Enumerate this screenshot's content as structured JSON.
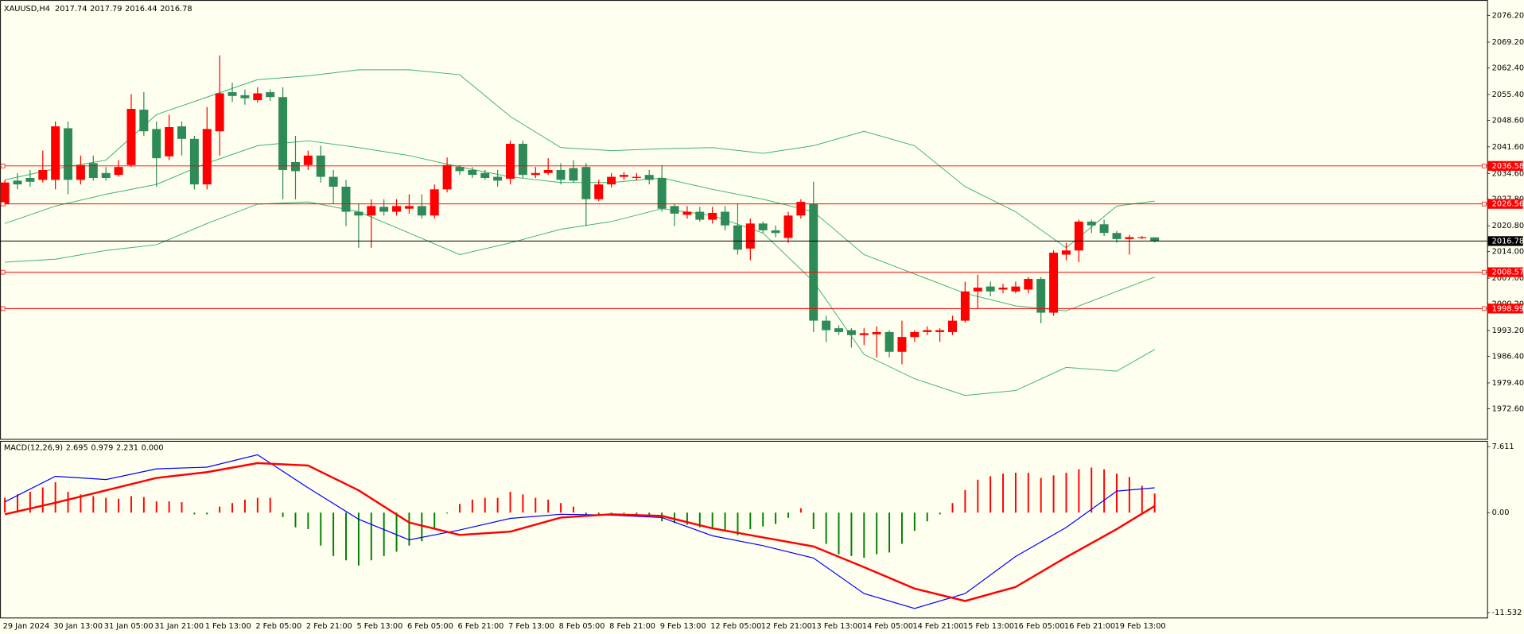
{
  "chart_data": [
    {
      "type": "candlestick",
      "title": "XAUUSD,H4",
      "categories": [
        "29 Jan 2024",
        null,
        null,
        null,
        "30 Jan 13:00",
        null,
        null,
        null,
        "31 Jan 05:00",
        null,
        null,
        null,
        "31 Jan 21:00",
        null,
        null,
        null,
        "1 Feb 13:00",
        null,
        null,
        null,
        "2 Feb 05:00",
        null,
        null,
        null,
        "2 Feb 21:00",
        null,
        null,
        null,
        "5 Feb 13:00",
        null,
        null,
        null,
        "6 Feb 05:00",
        null,
        null,
        null,
        "6 Feb 21:00",
        null,
        null,
        null,
        "7 Feb 13:00",
        null,
        null,
        null,
        "8 Feb 05:00",
        null,
        null,
        null,
        "8 Feb 21:00",
        null,
        null,
        null,
        "9 Feb 13:00",
        null,
        null,
        null,
        "12 Feb 05:00",
        null,
        null,
        null,
        "12 Feb 21:00",
        null,
        null,
        null,
        "13 Feb 13:00",
        null,
        null,
        null,
        "14 Feb 05:00",
        null,
        null,
        null,
        "14 Feb 21:00",
        null,
        null,
        null,
        "15 Feb 13:00",
        null,
        null,
        null,
        "16 Feb 05:00",
        null,
        null,
        null,
        "16 Feb 21:00",
        null,
        null,
        null,
        "19 Feb 13:00",
        null,
        null,
        null
      ],
      "candles": [
        [
          2026.5,
          2032.9,
          2026.0,
          2032.2
        ],
        [
          2032.7,
          2034.7,
          2030.4,
          2031.7
        ],
        [
          2033.4,
          2035.5,
          2031.1,
          2032.4
        ],
        [
          2032.9,
          2040.6,
          2032.2,
          2035.5
        ],
        [
          2032.9,
          2048.3,
          2030.4,
          2047.0
        ],
        [
          2046.5,
          2048.3,
          2029.1,
          2032.9
        ],
        [
          2032.9,
          2039.3,
          2031.7,
          2036.8
        ],
        [
          2037.3,
          2039.3,
          2032.7,
          2033.4
        ],
        [
          2034.7,
          2036.3,
          2032.7,
          2033.4
        ],
        [
          2034.2,
          2038.1,
          2033.7,
          2036.3
        ],
        [
          2036.8,
          2055.5,
          2036.3,
          2051.6
        ],
        [
          2051.4,
          2056.0,
          2044.5,
          2045.7
        ],
        [
          2046.3,
          2048.3,
          2031.1,
          2038.6
        ],
        [
          2039.1,
          2050.1,
          2038.1,
          2046.8
        ],
        [
          2047.0,
          2048.3,
          2039.3,
          2043.7
        ],
        [
          2043.7,
          2044.5,
          2030.4,
          2031.7
        ],
        [
          2031.7,
          2052.1,
          2030.4,
          2046.3
        ],
        [
          2045.7,
          2065.7,
          2039.3,
          2055.7
        ],
        [
          2056.0,
          2058.5,
          2053.4,
          2055.0
        ],
        [
          2055.2,
          2056.7,
          2052.7,
          2054.4
        ],
        [
          2053.9,
          2057.3,
          2053.2,
          2055.7
        ],
        [
          2056.0,
          2056.7,
          2053.7,
          2054.7
        ],
        [
          2054.7,
          2057.3,
          2027.8,
          2035.5
        ],
        [
          2037.6,
          2044.5,
          2027.8,
          2035.2
        ],
        [
          2036.8,
          2040.6,
          2035.5,
          2039.3
        ],
        [
          2039.3,
          2041.9,
          2032.2,
          2033.7
        ],
        [
          2033.7,
          2035.5,
          2026.5,
          2031.1
        ],
        [
          2031.1,
          2032.9,
          2020.7,
          2024.5
        ],
        [
          2024.5,
          2026.5,
          2015.0,
          2023.5
        ],
        [
          2023.5,
          2027.8,
          2015.0,
          2026.0
        ],
        [
          2025.8,
          2027.8,
          2023.5,
          2024.5
        ],
        [
          2024.5,
          2027.8,
          2023.5,
          2026.0
        ],
        [
          2025.3,
          2029.1,
          2024.0,
          2026.0
        ],
        [
          2026.0,
          2029.1,
          2022.7,
          2023.5
        ],
        [
          2023.5,
          2031.7,
          2022.7,
          2030.4
        ],
        [
          2030.4,
          2038.8,
          2029.6,
          2036.8
        ],
        [
          2036.3,
          2036.8,
          2034.2,
          2035.2
        ],
        [
          2035.5,
          2036.3,
          2033.4,
          2034.2
        ],
        [
          2034.7,
          2035.5,
          2032.9,
          2033.4
        ],
        [
          2033.7,
          2035.5,
          2031.1,
          2032.7
        ],
        [
          2033.2,
          2043.2,
          2031.7,
          2042.4
        ],
        [
          2042.4,
          2043.2,
          2033.4,
          2034.2
        ],
        [
          2034.2,
          2036.3,
          2033.4,
          2034.7
        ],
        [
          2034.7,
          2038.6,
          2034.2,
          2035.5
        ],
        [
          2035.5,
          2037.3,
          2031.7,
          2032.9
        ],
        [
          2036.0,
          2038.1,
          2032.2,
          2032.7
        ],
        [
          2036.3,
          2037.3,
          2020.7,
          2027.8
        ],
        [
          2027.8,
          2032.9,
          2027.3,
          2031.7
        ],
        [
          2031.7,
          2034.7,
          2030.9,
          2033.7
        ],
        [
          2033.7,
          2035.0,
          2032.9,
          2034.2
        ],
        [
          2033.4,
          2034.7,
          2032.7,
          2033.7
        ],
        [
          2034.2,
          2035.5,
          2031.7,
          2032.9
        ],
        [
          2033.4,
          2036.8,
          2024.5,
          2025.3
        ],
        [
          2026.0,
          2026.5,
          2020.7,
          2024.0
        ],
        [
          2023.7,
          2026.0,
          2022.7,
          2024.5
        ],
        [
          2024.5,
          2025.8,
          2021.9,
          2022.4
        ],
        [
          2022.4,
          2025.8,
          2021.4,
          2024.2
        ],
        [
          2024.5,
          2026.0,
          2019.6,
          2020.9
        ],
        [
          2020.9,
          2026.5,
          2013.2,
          2014.5
        ],
        [
          2014.8,
          2022.7,
          2011.7,
          2021.4
        ],
        [
          2021.4,
          2021.9,
          2018.9,
          2019.6
        ],
        [
          2019.6,
          2020.9,
          2017.8,
          2018.9
        ],
        [
          2017.6,
          2024.5,
          2016.3,
          2023.5
        ],
        [
          2023.5,
          2027.8,
          2022.7,
          2027.1
        ],
        [
          2026.5,
          2032.4,
          1992.8,
          1995.8
        ],
        [
          1995.8,
          1997.1,
          1990.2,
          1993.3
        ],
        [
          1993.8,
          1994.6,
          1992.0,
          1992.8
        ],
        [
          1993.3,
          1993.8,
          1988.7,
          1992.0
        ],
        [
          1992.0,
          1993.8,
          1989.4,
          1992.5
        ],
        [
          1992.2,
          1994.3,
          1986.1,
          1992.8
        ],
        [
          1992.8,
          1993.3,
          1986.1,
          1987.6
        ],
        [
          1987.6,
          1995.8,
          1984.3,
          1991.5
        ],
        [
          1991.5,
          1993.3,
          1990.2,
          1992.8
        ],
        [
          1992.8,
          1994.3,
          1992.0,
          1993.3
        ],
        [
          1992.8,
          1993.8,
          1990.2,
          1993.3
        ],
        [
          1992.8,
          1997.1,
          1992.0,
          1995.8
        ],
        [
          1995.8,
          2006.1,
          1995.3,
          2003.5
        ],
        [
          2003.5,
          2007.9,
          1998.9,
          2004.5
        ],
        [
          2004.8,
          2006.1,
          2002.2,
          2003.5
        ],
        [
          2004.0,
          2005.5,
          2003.0,
          2004.5
        ],
        [
          2003.5,
          2006.1,
          2003.0,
          2004.8
        ],
        [
          2004.0,
          2007.3,
          2003.0,
          2006.8
        ],
        [
          2006.8,
          2007.3,
          1995.1,
          1997.9
        ],
        [
          1997.9,
          2014.3,
          1997.1,
          2013.7
        ],
        [
          2013.2,
          2016.3,
          2011.7,
          2014.3
        ],
        [
          2014.3,
          2022.4,
          2011.2,
          2021.9
        ],
        [
          2021.9,
          2022.4,
          2018.9,
          2020.9
        ],
        [
          2021.2,
          2022.4,
          2018.1,
          2018.9
        ],
        [
          2018.9,
          2019.4,
          2016.3,
          2017.3
        ],
        [
          2017.3,
          2018.4,
          2013.2,
          2017.8
        ],
        [
          2017.6,
          2018.1,
          2017.3,
          2017.8
        ],
        [
          2017.74,
          2017.79,
          2016.44,
          2016.78
        ]
      ],
      "up_color": "#ff0000",
      "down_color": "#2e8b57",
      "bands": [
        {
          "color": "#3cb371",
          "x": [
            0,
            4,
            8,
            12,
            16,
            20,
            24,
            28,
            32,
            36,
            40,
            44,
            48,
            52,
            56,
            60,
            64,
            68,
            72,
            76,
            80,
            84,
            88,
            91
          ],
          "values": [
            2032.9,
            2035.8,
            2038.1,
            2050.1,
            2054.7,
            2059.3,
            2060.3,
            2061.9,
            2061.9,
            2060.6,
            2049.6,
            2041.4,
            2040.6,
            2041.1,
            2041.4,
            2039.9,
            2041.9,
            2045.7,
            2041.9,
            2031.1,
            2024.5,
            2015.0,
            2026.0,
            2027.3
          ]
        },
        {
          "color": "#3cb371",
          "x": [
            0,
            4,
            8,
            12,
            16,
            20,
            24,
            28,
            32,
            36,
            40,
            44,
            48,
            52,
            56,
            60,
            64,
            68,
            72,
            76,
            80,
            84,
            88,
            91
          ],
          "values": [
            2021.4,
            2026.0,
            2029.1,
            2031.7,
            2037.3,
            2041.9,
            2043.2,
            2041.4,
            2039.3,
            2036.3,
            2033.7,
            2032.2,
            2032.2,
            2033.4,
            2030.4,
            2027.8,
            2024.5,
            2013.2,
            2008.1,
            2003.0,
            1999.7,
            1998.4,
            2003.5,
            2007.3
          ]
        },
        {
          "color": "#3cb371",
          "x": [
            0,
            4,
            8,
            12,
            16,
            20,
            24,
            28,
            32,
            36,
            40,
            44,
            48,
            52,
            56,
            60,
            64,
            68,
            72,
            76,
            80,
            84,
            88,
            91
          ],
          "values": [
            2011.2,
            2012.0,
            2014.3,
            2015.8,
            2021.4,
            2026.5,
            2027.1,
            2024.5,
            2018.9,
            2013.2,
            2016.3,
            2019.9,
            2021.9,
            2025.3,
            2023.5,
            2018.9,
            2006.1,
            1986.9,
            1980.5,
            1976.1,
            1977.4,
            1983.5,
            1982.5,
            1988.2
          ]
        }
      ],
      "levels": [
        {
          "value": 2036.58,
          "color": "#ff0000"
        },
        {
          "value": 2026.56,
          "color": "#ff0000"
        },
        {
          "value": 2008.57,
          "color": "#ff0000"
        },
        {
          "value": 1998.99,
          "color": "#ff0000"
        }
      ],
      "price_line_color": "#000000",
      "ylim": [
        1964.66,
        2079.78
      ],
      "yticks": [
        {
          "value": 2076.2,
          "label": "2076.20"
        },
        {
          "value": 2069.2,
          "label": "2069.20"
        },
        {
          "value": 2062.4,
          "label": "2062.40"
        },
        {
          "value": 2055.4,
          "label": "2055.40"
        },
        {
          "value": 2048.6,
          "label": "2048.60"
        },
        {
          "value": 2041.6,
          "label": "2041.60"
        },
        {
          "value": 2034.6,
          "label": "2034.60"
        },
        {
          "value": 2027.8,
          "label": "2027.80"
        },
        {
          "value": 2020.8,
          "label": "2020.80"
        },
        {
          "value": 2014,
          "label": "2014.00"
        },
        {
          "value": 2007,
          "label": "2007.00"
        },
        {
          "value": 2000.2,
          "label": "2000.20"
        },
        {
          "value": 1993.2,
          "label": "1993.20"
        },
        {
          "value": 1986.4,
          "label": "1986.40"
        },
        {
          "value": 1979.4,
          "label": "1979.40"
        },
        {
          "value": 1972.6,
          "label": "1972.60"
        }
      ]
    },
    {
      "type": "macd",
      "title": "MACD(12,26,9)",
      "readout": [
        2.695,
        0.979,
        2.231,
        {
          "value": 0,
          "label": "0.000"
        }
      ],
      "values": [
        1.7,
        2.1,
        2.4,
        2.9,
        3.5,
        2.4,
        2.1,
        1.9,
        1.7,
        1.6,
        1.9,
        1.8,
        1.3,
        1.3,
        1.2,
        -0.2,
        -0.2,
        0.7,
        1.1,
        1.5,
        1.7,
        1.7,
        -0.5,
        -1.7,
        -1.9,
        -3.8,
        -5.0,
        -5.5,
        -6.1,
        -5.5,
        -5.0,
        -4.5,
        -3.8,
        -3.3,
        -1.9,
        -0.1,
        1.0,
        1.5,
        1.7,
        1.7,
        2.4,
        2.1,
        1.7,
        1.5,
        1.1,
        0.7,
        -0.2,
        -0.2,
        -0.1,
        -0.1,
        -0.2,
        -0.4,
        -1.0,
        -1.2,
        -1.4,
        -1.7,
        -1.7,
        -2.1,
        -2.6,
        -1.9,
        -1.6,
        -1.3,
        -0.6,
        0.5,
        -1.9,
        -3.6,
        -4.8,
        -5.0,
        -5.2,
        -4.8,
        -4.6,
        -3.6,
        -2.1,
        -1.0,
        -0.2,
        1.1,
        2.6,
        3.8,
        4.2,
        4.5,
        4.6,
        4.6,
        4.0,
        4.3,
        4.6,
        5.0,
        5.2,
        5.0,
        4.5,
        4.1,
        3.1,
        2.2
      ],
      "up_color": "#ff0000",
      "down_color": "#008000",
      "series": [
        {
          "color": "#0000ff",
          "x": [
            0,
            4,
            8,
            12,
            16,
            20,
            24,
            28,
            32,
            36,
            40,
            44,
            48,
            52,
            56,
            60,
            64,
            68,
            72,
            76,
            80,
            84,
            88,
            91
          ],
          "values": [
            1.24,
            4.19,
            3.81,
            5.05,
            5.24,
            6.67,
            2.86,
            -0.76,
            -3.14,
            -2.0,
            -0.67,
            -0.19,
            -0.29,
            -0.57,
            -2.67,
            -3.81,
            -5.24,
            -9.33,
            -11.05,
            -9.33,
            -5.05,
            -1.71,
            2.48,
            2.86
          ]
        },
        {
          "color": "#ff0000",
          "x": [
            0,
            4,
            8,
            12,
            16,
            20,
            24,
            28,
            32,
            36,
            40,
            44,
            48,
            52,
            56,
            60,
            64,
            68,
            72,
            76,
            80,
            84,
            88,
            91
          ],
          "values": [
            -0.19,
            1.14,
            2.57,
            4.0,
            4.67,
            5.71,
            5.43,
            2.57,
            -1.14,
            -2.57,
            -2.19,
            -0.57,
            -0.19,
            -0.38,
            -1.81,
            -2.86,
            -3.9,
            -6.29,
            -8.76,
            -10.19,
            -8.57,
            -5.14,
            -1.9,
            0.76
          ]
        }
      ],
      "ylim": [
        -11.532,
        7.611
      ],
      "yticks": [
        7.611,
        {
          "value": 0,
          "label": "0.00"
        },
        -11.532
      ]
    }
  ]
}
